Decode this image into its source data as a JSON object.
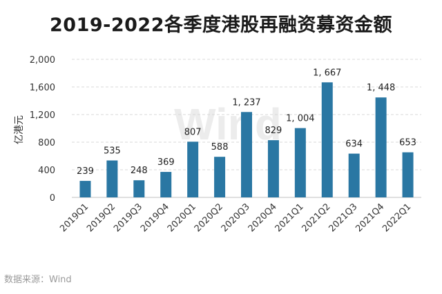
{
  "chart_data": {
    "type": "bar",
    "title": "2019-2022各季度港股再融资募资金额",
    "ylabel": "亿港元",
    "xlabel": "",
    "categories": [
      "2019Q1",
      "2019Q2",
      "2019Q3",
      "2019Q4",
      "2020Q1",
      "2020Q2",
      "2020Q3",
      "2020Q4",
      "2021Q1",
      "2021Q2",
      "2021Q3",
      "2021Q4",
      "2022Q1"
    ],
    "values": [
      239,
      535,
      248,
      369,
      807,
      588,
      1237,
      829,
      1004,
      1667,
      634,
      1448,
      653
    ],
    "value_labels": [
      "239",
      "535",
      "248",
      "369",
      "807",
      "588",
      "1, 237",
      "829",
      "1, 004",
      "1, 667",
      "634",
      "1, 448",
      "653"
    ],
    "ylim": [
      0,
      2000
    ],
    "yticks": [
      0,
      400,
      800,
      1200,
      1600,
      2000
    ],
    "ytick_labels": [
      "0",
      "400",
      "800",
      "1,200",
      "1,600",
      "2,000"
    ],
    "grid": true,
    "bar_color": "#2a77a3"
  },
  "watermark": "Wind",
  "source_note": "数据来源：Wind"
}
